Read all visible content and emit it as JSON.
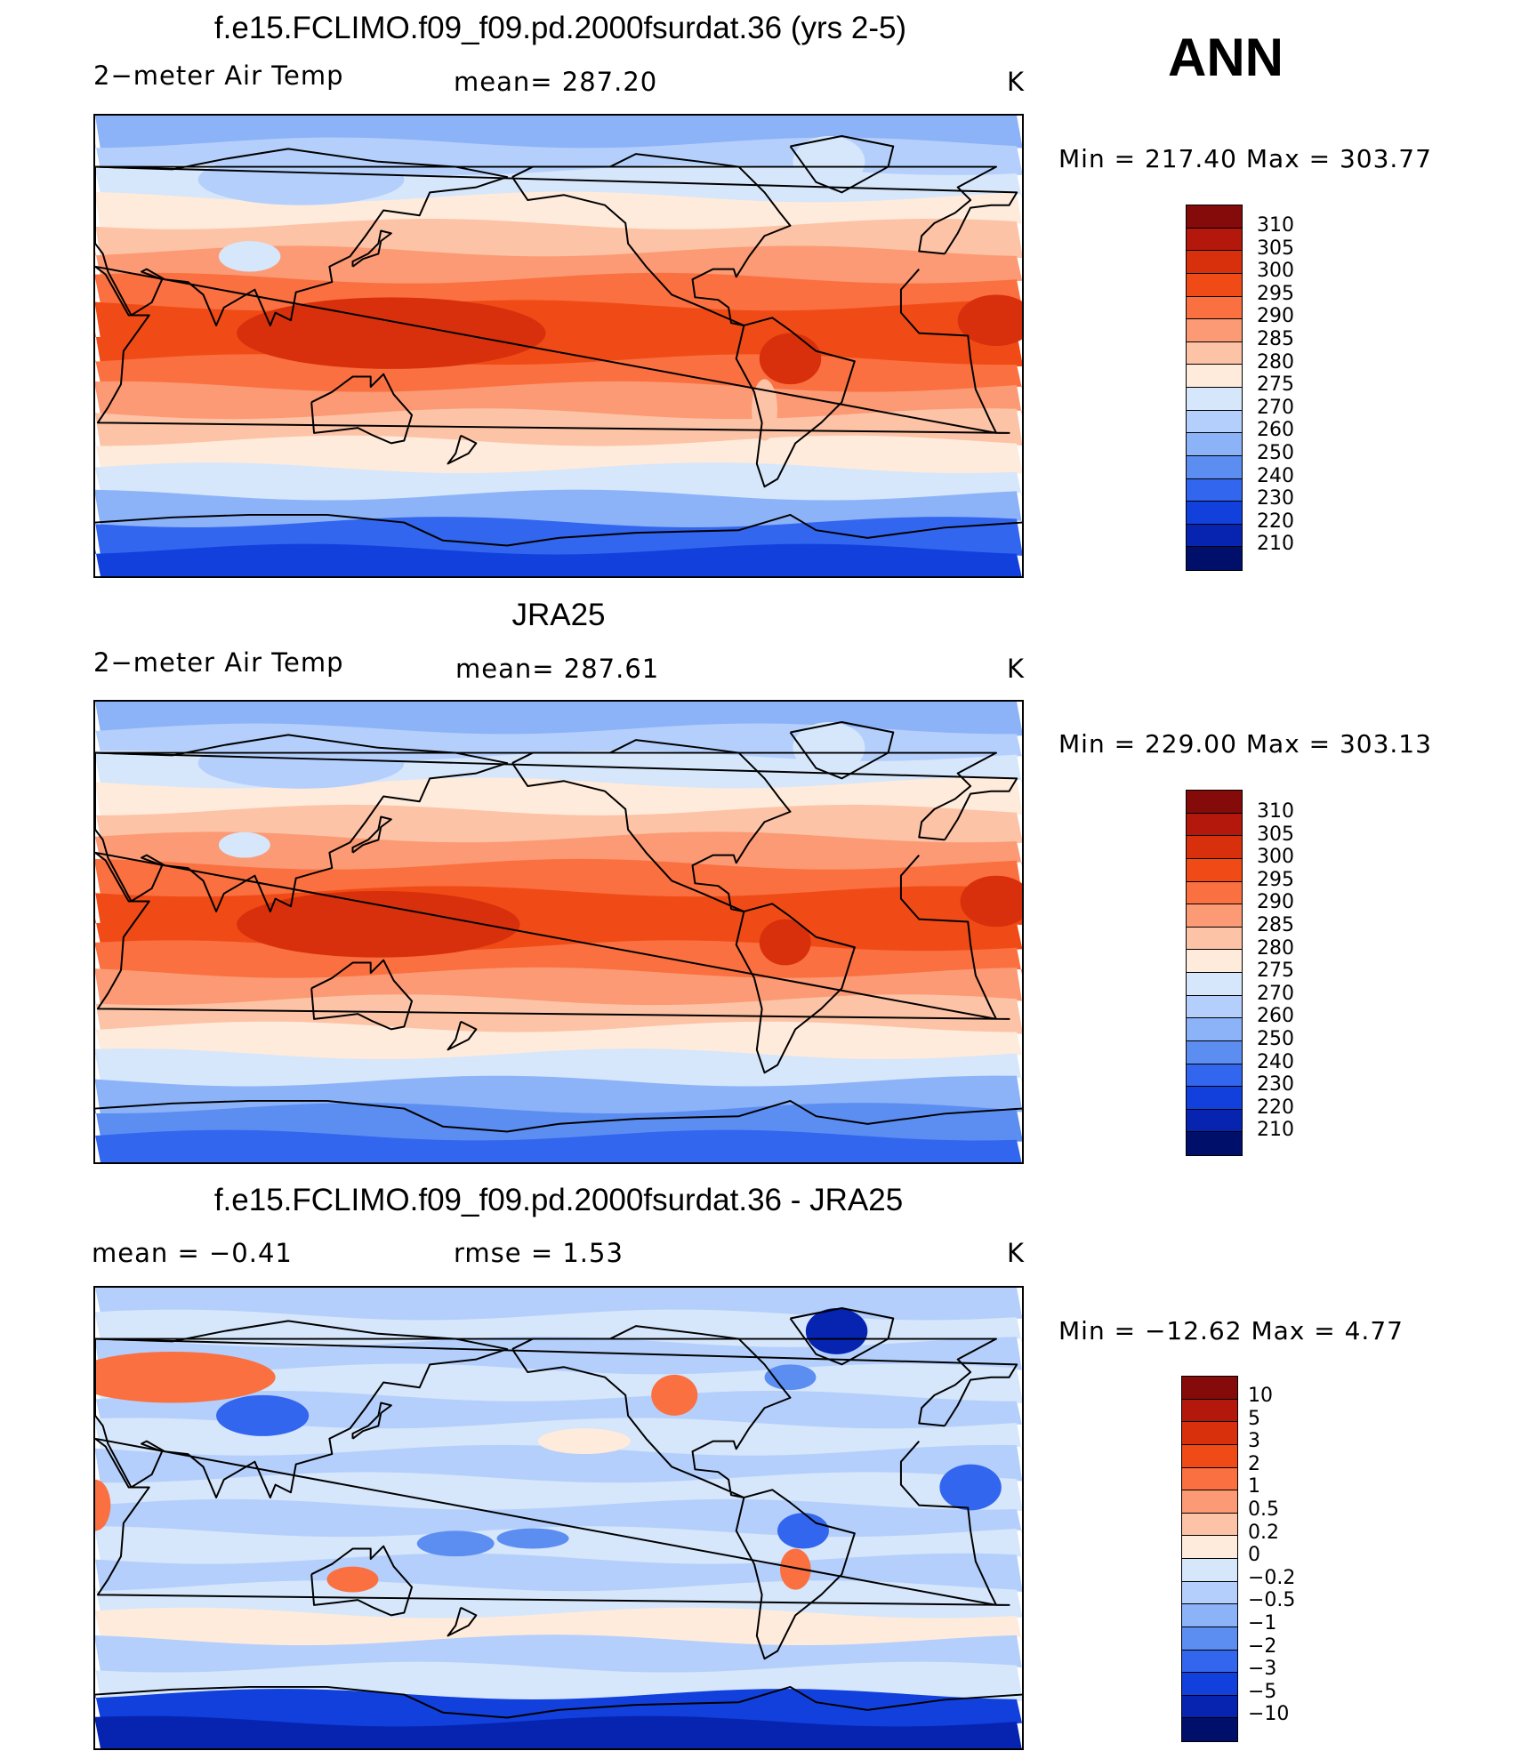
{
  "season_label": "ANN",
  "panels": [
    {
      "title": "f.e15.FCLIMO.f09_f09.pd.2000fsurdat.36 (yrs 2-5)",
      "left_label": "2−meter Air Temp",
      "center_label": "mean=  287.20",
      "unit": "K",
      "minmax": "Min  =  217.40  Max  =  303.77",
      "colorbar": {
        "labels": [
          "310",
          "305",
          "300",
          "295",
          "290",
          "285",
          "280",
          "275",
          "270",
          "260",
          "250",
          "240",
          "230",
          "220",
          "210"
        ],
        "colors": [
          "#850a0a",
          "#b4180c",
          "#d8300c",
          "#f04b16",
          "#fa7040",
          "#fb9a74",
          "#fdc3a6",
          "#feebdc",
          "#d6e6fb",
          "#b4cffb",
          "#8cb2f8",
          "#5c8ef2",
          "#3366ee",
          "#1140dd",
          "#0624b0",
          "#00106a"
        ]
      },
      "map": {
        "bands": [
          {
            "color": "#8cb2f8"
          },
          {
            "color": "#b4cffb"
          },
          {
            "color": "#d6e6fb"
          },
          {
            "color": "#feebdc"
          },
          {
            "color": "#fdc3a6"
          },
          {
            "color": "#fb9a74"
          },
          {
            "color": "#fa7040"
          },
          {
            "color": "#f04b16"
          },
          {
            "color": "#f04b16"
          },
          {
            "color": "#fa7040"
          },
          {
            "color": "#fb9a74"
          },
          {
            "color": "#fdc3a6"
          },
          {
            "color": "#feebdc"
          },
          {
            "color": "#d6e6fb"
          },
          {
            "color": "#8cb2f8"
          },
          {
            "color": "#3366ee"
          },
          {
            "color": "#1140dd"
          }
        ],
        "blobs": [
          {
            "color": "#d8300c",
            "lon": 145,
            "lat": 5,
            "rx": 60,
            "ry": 14
          },
          {
            "color": "#d8300c",
            "lon": 20,
            "lat": 10,
            "rx": 15,
            "ry": 10
          },
          {
            "color": "#d8300c",
            "lon": -60,
            "lat": -5,
            "rx": 12,
            "ry": 10
          },
          {
            "color": "#d6e6fb",
            "lon": 90,
            "lat": 35,
            "rx": 12,
            "ry": 6
          },
          {
            "color": "#d6e6fb",
            "lon": -45,
            "lat": 72,
            "rx": 14,
            "ry": 10
          },
          {
            "color": "#b4cffb",
            "lon": 110,
            "lat": 65,
            "rx": 40,
            "ry": 10
          },
          {
            "color": "#fdc3a6",
            "lon": -70,
            "lat": -25,
            "rx": 5,
            "ry": 12
          }
        ]
      }
    },
    {
      "title": "JRA25",
      "left_label": "2−meter Air Temp",
      "center_label": "mean=  287.61",
      "unit": "K",
      "minmax": "Min  =  229.00  Max  =  303.13",
      "colorbar": {
        "labels": [
          "310",
          "305",
          "300",
          "295",
          "290",
          "285",
          "280",
          "275",
          "270",
          "260",
          "250",
          "240",
          "230",
          "220",
          "210"
        ],
        "colors": [
          "#850a0a",
          "#b4180c",
          "#d8300c",
          "#f04b16",
          "#fa7040",
          "#fb9a74",
          "#fdc3a6",
          "#feebdc",
          "#d6e6fb",
          "#b4cffb",
          "#8cb2f8",
          "#5c8ef2",
          "#3366ee",
          "#1140dd",
          "#0624b0",
          "#00106a"
        ]
      },
      "map": {
        "bands": [
          {
            "color": "#8cb2f8"
          },
          {
            "color": "#b4cffb"
          },
          {
            "color": "#d6e6fb"
          },
          {
            "color": "#feebdc"
          },
          {
            "color": "#fdc3a6"
          },
          {
            "color": "#fb9a74"
          },
          {
            "color": "#fa7040"
          },
          {
            "color": "#f04b16"
          },
          {
            "color": "#f04b16"
          },
          {
            "color": "#fa7040"
          },
          {
            "color": "#fb9a74"
          },
          {
            "color": "#fdc3a6"
          },
          {
            "color": "#feebdc"
          },
          {
            "color": "#d6e6fb"
          },
          {
            "color": "#8cb2f8"
          },
          {
            "color": "#5c8ef2"
          },
          {
            "color": "#3366ee"
          }
        ],
        "blobs": [
          {
            "color": "#d8300c",
            "lon": 140,
            "lat": 3,
            "rx": 55,
            "ry": 13
          },
          {
            "color": "#d8300c",
            "lon": 20,
            "lat": 12,
            "rx": 14,
            "ry": 10
          },
          {
            "color": "#d8300c",
            "lon": -62,
            "lat": -4,
            "rx": 10,
            "ry": 9
          },
          {
            "color": "#d6e6fb",
            "lon": 88,
            "lat": 34,
            "rx": 10,
            "ry": 5
          },
          {
            "color": "#d6e6fb",
            "lon": -45,
            "lat": 72,
            "rx": 14,
            "ry": 10
          },
          {
            "color": "#b4cffb",
            "lon": 110,
            "lat": 66,
            "rx": 40,
            "ry": 10
          }
        ]
      }
    },
    {
      "title": "f.e15.FCLIMO.f09_f09.pd.2000fsurdat.36 - JRA25",
      "left_label": "mean  =    −0.41",
      "center_label": "rmse  =     1.53",
      "unit": "K",
      "minmax": "Min  =  −12.62  Max  =      4.77",
      "colorbar": {
        "labels": [
          "10",
          "5",
          "3",
          "2",
          "1",
          "0.5",
          "0.2",
          "0",
          "−0.2",
          "−0.5",
          "−1",
          "−2",
          "−3",
          "−5",
          "−10"
        ],
        "colors": [
          "#850a0a",
          "#b4180c",
          "#d8300c",
          "#f04b16",
          "#fa7040",
          "#fb9a74",
          "#fdc3a6",
          "#feebdc",
          "#d6e6fb",
          "#b4cffb",
          "#8cb2f8",
          "#5c8ef2",
          "#3366ee",
          "#1140dd",
          "#0624b0",
          "#00106a"
        ]
      },
      "map": {
        "bands": [
          {
            "color": "#b4cffb"
          },
          {
            "color": "#d6e6fb"
          },
          {
            "color": "#b4cffb"
          },
          {
            "color": "#d6e6fb"
          },
          {
            "color": "#b4cffb"
          },
          {
            "color": "#d6e6fb"
          },
          {
            "color": "#b4cffb"
          },
          {
            "color": "#d6e6fb"
          },
          {
            "color": "#b4cffb"
          },
          {
            "color": "#d6e6fb"
          },
          {
            "color": "#b4cffb"
          },
          {
            "color": "#d6e6fb"
          },
          {
            "color": "#feebdc"
          },
          {
            "color": "#b4cffb"
          },
          {
            "color": "#d6e6fb"
          },
          {
            "color": "#1140dd"
          },
          {
            "color": "#0624b0"
          }
        ],
        "blobs": [
          {
            "color": "#fa7040",
            "lon": 60,
            "lat": 55,
            "rx": 40,
            "ry": 10
          },
          {
            "color": "#3366ee",
            "lon": 95,
            "lat": 40,
            "rx": 18,
            "ry": 8
          },
          {
            "color": "#3366ee",
            "lon": 10,
            "lat": 12,
            "rx": 12,
            "ry": 9
          },
          {
            "color": "#fa7040",
            "lon": 30,
            "lat": 5,
            "rx": 6,
            "ry": 10
          },
          {
            "color": "#3366ee",
            "lon": -55,
            "lat": -5,
            "rx": 10,
            "ry": 7
          },
          {
            "color": "#fa7040",
            "lon": -58,
            "lat": -20,
            "rx": 6,
            "ry": 8
          },
          {
            "color": "#fa7040",
            "lon": 130,
            "lat": -24,
            "rx": 10,
            "ry": 5
          },
          {
            "color": "#fa7040",
            "lon": -105,
            "lat": 48,
            "rx": 9,
            "ry": 8
          },
          {
            "color": "#0624b0",
            "lon": -42,
            "lat": 73,
            "rx": 12,
            "ry": 9
          },
          {
            "color": "#5c8ef2",
            "lon": -60,
            "lat": 55,
            "rx": 10,
            "ry": 5
          },
          {
            "color": "#5c8ef2",
            "lon": 170,
            "lat": -10,
            "rx": 15,
            "ry": 5
          },
          {
            "color": "#5c8ef2",
            "lon": -160,
            "lat": -8,
            "rx": 14,
            "ry": 4
          },
          {
            "color": "#feebdc",
            "lon": -140,
            "lat": 30,
            "rx": 18,
            "ry": 5
          }
        ]
      }
    }
  ]
}
